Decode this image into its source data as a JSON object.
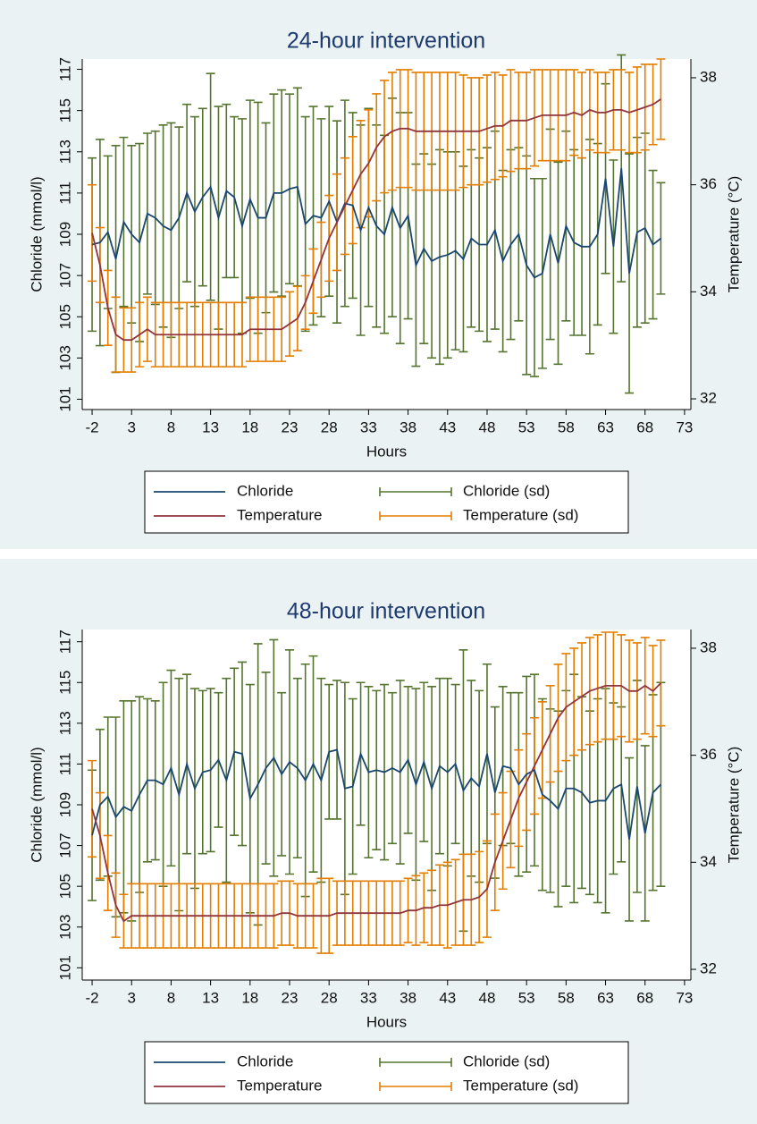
{
  "chart_data": [
    {
      "type": "line",
      "title": "24-hour intervention",
      "x_label": "Hours",
      "y_label": "Chloride (mmol/l)",
      "y2_label": "Temperature (°C)",
      "legend": "bottom",
      "x": [
        -2,
        -1,
        0,
        1,
        2,
        3,
        4,
        5,
        6,
        7,
        8,
        9,
        10,
        11,
        12,
        13,
        14,
        15,
        16,
        17,
        18,
        19,
        20,
        21,
        22,
        23,
        24,
        25,
        26,
        27,
        28,
        29,
        30,
        31,
        32,
        33,
        34,
        35,
        36,
        37,
        38,
        39,
        40,
        41,
        42,
        43,
        44,
        45,
        46,
        47,
        48,
        49,
        50,
        51,
        52,
        53,
        54,
        55,
        56,
        57,
        58,
        59,
        60,
        61,
        62,
        63,
        64,
        65,
        66,
        67,
        68,
        69,
        70
      ],
      "xlim": [
        -3.25,
        73.8
      ],
      "xticks": [
        -2,
        3,
        8,
        13,
        18,
        23,
        28,
        33,
        38,
        43,
        48,
        53,
        58,
        63,
        68,
        73
      ],
      "ylim": [
        100.5,
        117.5
      ],
      "yticks": [
        101,
        103,
        105,
        107,
        109,
        111,
        113,
        115,
        117
      ],
      "y2lim": [
        31.8,
        38.35
      ],
      "y2ticks": [
        32,
        34,
        36,
        38
      ],
      "series": [
        {
          "name": "Chloride",
          "color": "#1a476f",
          "axis": "y",
          "sd_name": "Chloride (sd)",
          "sd_color": "#55752f",
          "values": [
            108.5,
            108.6,
            109.1,
            107.8,
            109.6,
            109.0,
            108.6,
            110.0,
            109.8,
            109.4,
            109.2,
            109.8,
            111.0,
            110.1,
            110.8,
            111.3,
            109.8,
            111.1,
            110.8,
            109.4,
            110.7,
            109.8,
            109.8,
            111.0,
            111.0,
            111.2,
            111.3,
            109.5,
            109.9,
            109.8,
            110.6,
            109.6,
            110.5,
            110.4,
            109.2,
            110.3,
            109.4,
            109.0,
            110.3,
            109.3,
            109.9,
            107.5,
            108.3,
            107.7,
            107.9,
            108.0,
            108.2,
            107.8,
            108.8,
            108.5,
            108.5,
            109.2,
            107.7,
            108.5,
            109.0,
            107.5,
            106.9,
            107.1,
            109.0,
            107.6,
            109.4,
            108.6,
            108.4,
            108.4,
            109.0,
            111.7,
            108.4,
            112.2,
            107.1,
            109.1,
            109.3,
            108.5,
            108.8
          ],
          "sd": [
            4.2,
            5.0,
            3.7,
            5.5,
            4.1,
            4.3,
            4.8,
            3.9,
            4.2,
            4.9,
            5.2,
            4.4,
            4.3,
            4.6,
            4.3,
            5.5,
            5.4,
            4.2,
            3.9,
            5.2,
            4.8,
            5.6,
            4.6,
            4.8,
            5.0,
            4.6,
            4.8,
            5.2,
            5.3,
            4.8,
            4.6,
            4.9,
            5.0,
            4.5,
            5.1,
            4.8,
            4.9,
            4.8,
            5.3,
            5.6,
            5.0,
            4.9,
            4.6,
            4.7,
            5.2,
            5.0,
            4.8,
            4.5,
            4.3,
            4.2,
            4.7,
            4.8,
            4.4,
            4.6,
            4.2,
            5.3,
            4.8,
            4.6,
            5.1,
            4.9,
            4.6,
            4.5,
            4.3,
            5.2,
            4.4,
            4.6,
            4.2,
            5.5,
            5.8,
            4.6,
            4.6,
            3.6,
            2.7
          ]
        },
        {
          "name": "Temperature",
          "color": "#90353b",
          "axis": "y2",
          "sd_name": "Temperature (sd)",
          "sd_color": "#e37e00",
          "values": [
            35.1,
            34.5,
            33.7,
            33.2,
            33.1,
            33.1,
            33.2,
            33.3,
            33.2,
            33.2,
            33.2,
            33.2,
            33.2,
            33.2,
            33.2,
            33.2,
            33.2,
            33.2,
            33.2,
            33.2,
            33.3,
            33.3,
            33.3,
            33.3,
            33.3,
            33.4,
            33.5,
            33.8,
            34.2,
            34.6,
            35.0,
            35.3,
            35.6,
            35.9,
            36.2,
            36.4,
            36.7,
            36.9,
            37.0,
            37.05,
            37.05,
            37.0,
            37.0,
            37.0,
            37.0,
            37.0,
            37.0,
            37.0,
            37.0,
            37.0,
            37.05,
            37.1,
            37.1,
            37.2,
            37.2,
            37.2,
            37.25,
            37.3,
            37.3,
            37.3,
            37.3,
            37.35,
            37.3,
            37.4,
            37.35,
            37.35,
            37.4,
            37.4,
            37.35,
            37.4,
            37.45,
            37.5,
            37.6
          ],
          "sd": [
            0.9,
            0.7,
            0.7,
            0.7,
            0.6,
            0.6,
            0.6,
            0.6,
            0.6,
            0.6,
            0.6,
            0.6,
            0.6,
            0.6,
            0.6,
            0.6,
            0.6,
            0.6,
            0.6,
            0.6,
            0.6,
            0.6,
            0.6,
            0.6,
            0.6,
            0.6,
            0.6,
            0.5,
            0.6,
            0.7,
            0.8,
            0.9,
            0.9,
            1.0,
            1.0,
            1.0,
            1.0,
            1.05,
            1.1,
            1.1,
            1.1,
            1.1,
            1.1,
            1.1,
            1.1,
            1.1,
            1.1,
            1.05,
            1.0,
            1.0,
            1.0,
            1.0,
            0.95,
            0.95,
            0.9,
            0.9,
            0.9,
            0.85,
            0.85,
            0.85,
            0.85,
            0.8,
            0.8,
            0.75,
            0.75,
            0.75,
            0.75,
            0.75,
            0.75,
            0.8,
            0.8,
            0.75,
            0.75
          ]
        }
      ]
    },
    {
      "type": "line",
      "title": "48-hour intervention",
      "x_label": "Hours",
      "y_label": "Chloride (mmol/l)",
      "y2_label": "Temperature (°C)",
      "legend": "bottom",
      "x": [
        -2,
        -1,
        0,
        1,
        2,
        3,
        4,
        5,
        6,
        7,
        8,
        9,
        10,
        11,
        12,
        13,
        14,
        15,
        16,
        17,
        18,
        19,
        20,
        21,
        22,
        23,
        24,
        25,
        26,
        27,
        28,
        29,
        30,
        31,
        32,
        33,
        34,
        35,
        36,
        37,
        38,
        39,
        40,
        41,
        42,
        43,
        44,
        45,
        46,
        47,
        48,
        49,
        50,
        51,
        52,
        53,
        54,
        55,
        56,
        57,
        58,
        59,
        60,
        61,
        62,
        63,
        64,
        65,
        66,
        67,
        68,
        69,
        70
      ],
      "xlim": [
        -3.25,
        73.8
      ],
      "xticks": [
        -2,
        3,
        8,
        13,
        18,
        23,
        28,
        33,
        38,
        43,
        48,
        53,
        58,
        63,
        68,
        73
      ],
      "ylim": [
        100.4,
        117.6
      ],
      "yticks": [
        101,
        103,
        105,
        107,
        109,
        111,
        113,
        115,
        117
      ],
      "y2lim": [
        31.8,
        38.35
      ],
      "y2ticks": [
        32,
        34,
        36,
        38
      ],
      "series": [
        {
          "name": "Chloride",
          "color": "#1a476f",
          "axis": "y",
          "sd_name": "Chloride (sd)",
          "sd_color": "#55752f",
          "values": [
            107.5,
            109.0,
            109.4,
            108.4,
            108.9,
            108.7,
            109.5,
            110.2,
            110.2,
            110.0,
            110.8,
            109.5,
            111.0,
            109.8,
            110.6,
            110.7,
            111.2,
            110.2,
            111.6,
            111.5,
            109.3,
            110.0,
            110.8,
            111.3,
            110.5,
            111.1,
            110.8,
            110.2,
            111.0,
            110.2,
            111.6,
            111.7,
            109.8,
            109.9,
            111.5,
            110.6,
            110.7,
            110.6,
            110.8,
            110.6,
            111.2,
            110.0,
            111.1,
            109.8,
            110.9,
            110.6,
            111.0,
            109.7,
            110.3,
            109.9,
            111.5,
            109.6,
            110.9,
            110.8,
            110.0,
            110.5,
            110.7,
            109.5,
            109.2,
            108.8,
            109.8,
            109.8,
            109.6,
            109.1,
            109.2,
            109.2,
            109.8,
            110.0,
            107.3,
            109.9,
            107.6,
            109.6,
            110.0
          ],
          "sd": [
            3.2,
            3.7,
            3.9,
            4.9,
            5.2,
            5.4,
            4.8,
            4.0,
            3.9,
            5.0,
            4.8,
            5.7,
            4.4,
            4.9,
            4.0,
            4.0,
            3.3,
            5.0,
            4.1,
            4.5,
            5.6,
            6.9,
            4.7,
            5.8,
            4.0,
            5.5,
            4.4,
            5.7,
            5.3,
            5.0,
            3.3,
            3.4,
            5.2,
            4.3,
            3.5,
            4.2,
            3.9,
            4.3,
            3.7,
            4.5,
            3.6,
            4.7,
            3.9,
            5.0,
            4.3,
            4.6,
            3.9,
            6.9,
            4.8,
            4.7,
            4.4,
            4.2,
            3.9,
            3.7,
            4.5,
            4.8,
            4.7,
            4.7,
            4.5,
            4.8,
            4.8,
            5.6,
            4.7,
            4.5,
            5.0,
            5.5,
            4.2,
            3.8,
            4.0,
            5.2,
            4.3,
            4.8,
            5.0
          ]
        },
        {
          "name": "Temperature",
          "color": "#90353b",
          "axis": "y2",
          "sd_name": "Temperature (sd)",
          "sd_color": "#e37e00",
          "values": [
            35.0,
            34.5,
            33.8,
            33.2,
            32.9,
            33.0,
            33.0,
            33.0,
            33.0,
            33.0,
            33.0,
            33.0,
            33.0,
            33.0,
            33.0,
            33.0,
            33.0,
            33.0,
            33.0,
            33.0,
            33.0,
            33.0,
            33.0,
            33.0,
            33.05,
            33.05,
            33.0,
            33.0,
            33.0,
            33.0,
            33.0,
            33.05,
            33.05,
            33.05,
            33.05,
            33.05,
            33.05,
            33.05,
            33.05,
            33.05,
            33.1,
            33.1,
            33.15,
            33.15,
            33.2,
            33.2,
            33.25,
            33.3,
            33.3,
            33.35,
            33.5,
            34.0,
            34.4,
            34.8,
            35.2,
            35.5,
            35.8,
            36.1,
            36.4,
            36.7,
            36.9,
            37.0,
            37.1,
            37.2,
            37.25,
            37.3,
            37.3,
            37.3,
            37.2,
            37.2,
            37.3,
            37.2,
            37.35
          ],
          "sd": [
            0.9,
            0.8,
            0.7,
            0.6,
            0.5,
            0.6,
            0.6,
            0.6,
            0.6,
            0.6,
            0.6,
            0.6,
            0.6,
            0.6,
            0.6,
            0.6,
            0.6,
            0.6,
            0.6,
            0.6,
            0.6,
            0.6,
            0.6,
            0.6,
            0.6,
            0.6,
            0.6,
            0.6,
            0.6,
            0.7,
            0.7,
            0.6,
            0.6,
            0.6,
            0.6,
            0.6,
            0.6,
            0.6,
            0.6,
            0.6,
            0.6,
            0.65,
            0.65,
            0.7,
            0.75,
            0.8,
            0.8,
            0.85,
            0.85,
            0.85,
            0.9,
            0.9,
            0.9,
            0.9,
            0.9,
            0.9,
            0.9,
            0.9,
            0.9,
            1.0,
            1.0,
            1.0,
            1.0,
            1.0,
            1.0,
            1.0,
            1.0,
            0.95,
            0.95,
            0.9,
            0.9,
            0.85,
            0.8
          ]
        }
      ]
    }
  ]
}
